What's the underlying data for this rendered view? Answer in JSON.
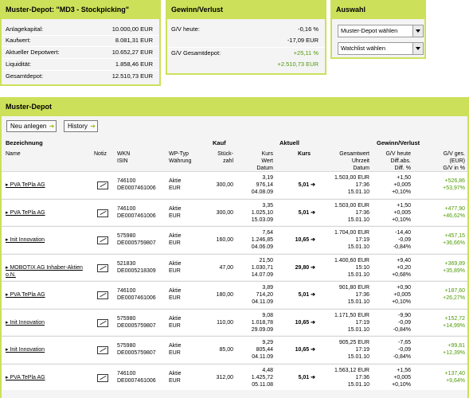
{
  "depot": {
    "title": "Muster-Depot: \"MD3 - Stockpicking\"",
    "rows": [
      {
        "label": "Anlagekapital:",
        "value": "10.000,00 EUR"
      },
      {
        "label": "Kaufwert:",
        "value": "8.081,31 EUR"
      },
      {
        "label": "Aktueller Depotwert:",
        "value": "10.652,27 EUR"
      },
      {
        "label": "Liquidität:",
        "value": "1.858,46 EUR"
      },
      {
        "label": "Gesamtdepot:",
        "value": "12.510,73 EUR"
      }
    ]
  },
  "gv": {
    "title": "Gewinn/Verlust",
    "heute_label": "G/V heute:",
    "heute_pct": "-0,16 %",
    "heute_eur": "-17,09 EUR",
    "gesamt_label": "G/V Gesamtdepot:",
    "gesamt_pct": "+25,11 %",
    "gesamt_eur": "+2.510,73 EUR"
  },
  "auswahl": {
    "title": "Auswahl",
    "select1": "Muster-Depot wählen",
    "select2": "Watchlist wählen"
  },
  "main": {
    "title": "Muster-Depot",
    "btn_new": "Neu anlegen",
    "btn_history": "History"
  },
  "table": {
    "groups": {
      "bezeichnung": "Bezeichnung",
      "kauf": "Kauf",
      "aktuell": "Aktuell",
      "gv": "Gewinn/Verlust"
    },
    "cols": {
      "name": "Name",
      "notiz": "Notiz",
      "wkn": "WKN\nISIN",
      "wptyp": "WP-Typ\nWährung",
      "stueck": "Stück-\nzahl",
      "kurs": "Kurs\nWert\nDatum",
      "akurs": "Kurs",
      "gesamt": "Gesamtwert\nUhrzeit\nDatum",
      "gvheute": "G/V heute\nDiff.abs.\nDiff. %",
      "gvges": "G/V ges.\n(EUR)\nG/V in %"
    },
    "rows": [
      {
        "name": "PVA TePla AG",
        "wkn": "746100",
        "isin": "DE0007461006",
        "typ": "Aktie",
        "cur": "EUR",
        "stk": "300,00",
        "k1": "3,19",
        "k2": "976,14",
        "k3": "04.08.09",
        "kurs": "5,01",
        "g1": "1.503,00 EUR",
        "g2": "17:36",
        "g3": "15.01.10",
        "h1": "+1,50",
        "h2": "+0,005",
        "h3": "+0,10%",
        "v1": "+526,86",
        "v2": "+53,97%"
      },
      {
        "name": "PVA TePla AG",
        "wkn": "746100",
        "isin": "DE0007461006",
        "typ": "Aktie",
        "cur": "EUR",
        "stk": "300,00",
        "k1": "3,35",
        "k2": "1.025,10",
        "k3": "15.03.09",
        "kurs": "5,01",
        "g1": "1.503,00 EUR",
        "g2": "17:36",
        "g3": "15.01.10",
        "h1": "+1,50",
        "h2": "+0,005",
        "h3": "+0,10%",
        "v1": "+477,90",
        "v2": "+46,62%"
      },
      {
        "name": "Init Innovation",
        "wkn": "575980",
        "isin": "DE0005759807",
        "typ": "Aktie",
        "cur": "EUR",
        "stk": "160,00",
        "k1": "7,64",
        "k2": "1.246,85",
        "k3": "04.06.09",
        "kurs": "10,65",
        "g1": "1.704,00 EUR",
        "g2": "17:19",
        "g3": "15.01.10",
        "h1": "-14,40",
        "h2": "-0,09",
        "h3": "-0,84%",
        "v1": "+457,15",
        "v2": "+36,66%"
      },
      {
        "name": "MOBOTIX AG Inhaber-Aktien o.N.",
        "wkn": "521830",
        "isin": "DE0005218309",
        "typ": "Aktie",
        "cur": "EUR",
        "stk": "47,00",
        "k1": "21,50",
        "k2": "1.030,71",
        "k3": "14.07.09",
        "kurs": "29,80",
        "g1": "1.400,60 EUR",
        "g2": "15:10",
        "g3": "15.01.10",
        "h1": "+9,40",
        "h2": "+0,20",
        "h3": "+0,68%",
        "v1": "+369,89",
        "v2": "+35,89%"
      },
      {
        "name": "PVA TePla AG",
        "wkn": "746100",
        "isin": "DE0007461006",
        "typ": "Aktie",
        "cur": "EUR",
        "stk": "180,00",
        "k1": "3,89",
        "k2": "714,20",
        "k3": "04.11.09",
        "kurs": "5,01",
        "g1": "901,80 EUR",
        "g2": "17:36",
        "g3": "15.01.10",
        "h1": "+0,90",
        "h2": "+0,005",
        "h3": "+0,10%",
        "v1": "+187,60",
        "v2": "+26,27%"
      },
      {
        "name": "Init Innovation",
        "wkn": "575980",
        "isin": "DE0005759807",
        "typ": "Aktie",
        "cur": "EUR",
        "stk": "110,00",
        "k1": "9,08",
        "k2": "1.018,78",
        "k3": "29.09.09",
        "kurs": "10,65",
        "g1": "1.171,50 EUR",
        "g2": "17:19",
        "g3": "15.01.10",
        "h1": "-9,90",
        "h2": "-0,09",
        "h3": "-0,84%",
        "v1": "+152,72",
        "v2": "+14,99%"
      },
      {
        "name": "Init Innovation",
        "wkn": "575980",
        "isin": "DE0005759807",
        "typ": "Aktie",
        "cur": "EUR",
        "stk": "85,00",
        "k1": "9,29",
        "k2": "805,44",
        "k3": "04.11.09",
        "kurs": "10,65",
        "g1": "905,25 EUR",
        "g2": "17:19",
        "g3": "15.01.10",
        "h1": "-7,65",
        "h2": "-0,09",
        "h3": "-0,84%",
        "v1": "+99,81",
        "v2": "+12,39%"
      },
      {
        "name": "PVA TePla AG",
        "wkn": "746100",
        "isin": "DE0007461006",
        "typ": "Aktie",
        "cur": "EUR",
        "stk": "312,00",
        "k1": "4,48",
        "k2": "1.425,72",
        "k3": "05.11.08",
        "kurs": "5,01",
        "g1": "1.563,12 EUR",
        "g2": "17:36",
        "g3": "15.01.10",
        "h1": "+1,56",
        "h2": "+0,005",
        "h3": "+0,10%",
        "v1": "+137,40",
        "v2": "+9,64%"
      }
    ]
  }
}
